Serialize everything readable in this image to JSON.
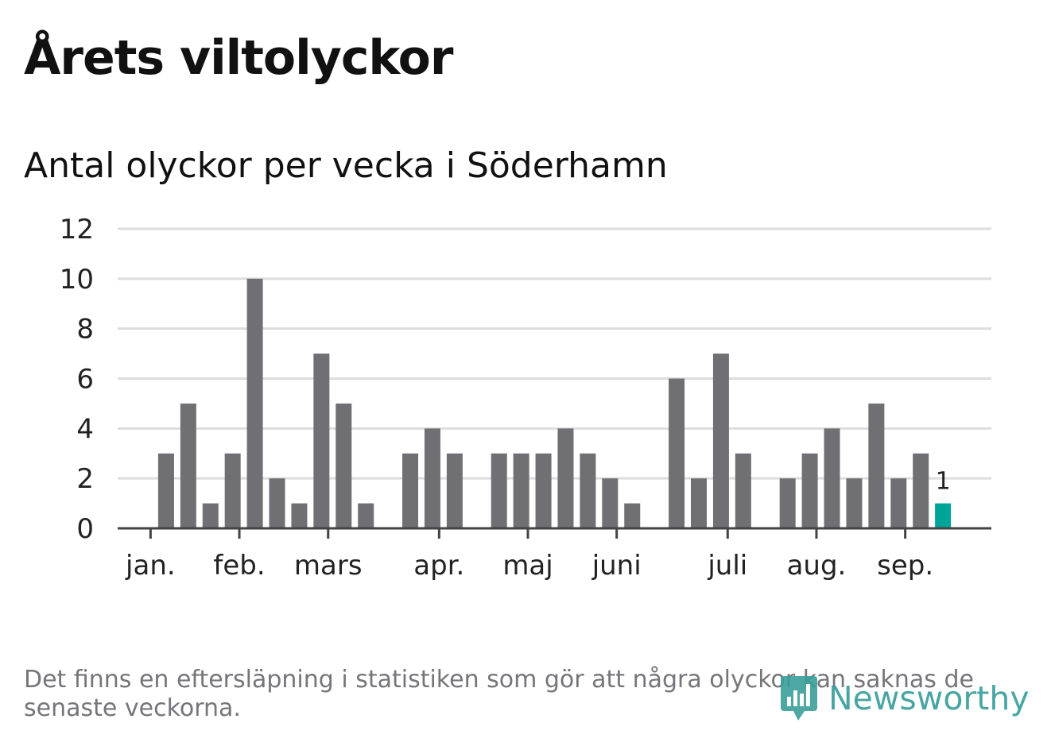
{
  "header": {
    "title": "Årets viltolyckor",
    "subtitle": "Antal olyckor per vecka i Söderhamn"
  },
  "footer": {
    "note": "Det finns en eftersläpning i statistiken som gör att några olyckor kan saknas de senaste veckorna.",
    "brand": "Newsworthy"
  },
  "colors": {
    "bar": "#707074",
    "highlight": "#00a497",
    "grid": "#dddddd",
    "axis": "#444444",
    "text": "#222222"
  },
  "chart_data": {
    "type": "bar",
    "values": [
      0,
      3,
      5,
      1,
      3,
      10,
      2,
      1,
      7,
      5,
      1,
      0,
      3,
      4,
      3,
      0,
      3,
      3,
      3,
      4,
      3,
      2,
      1,
      0,
      6,
      2,
      7,
      3,
      0,
      2,
      3,
      4,
      2,
      5,
      2,
      3,
      1
    ],
    "highlight_last": true,
    "last_label": "1",
    "y_ticks": [
      "0",
      "2",
      "4",
      "6",
      "8",
      "10",
      "12"
    ],
    "ylim": [
      0,
      12
    ],
    "months": [
      {
        "label": "jan.",
        "index": 0.3
      },
      {
        "label": "feb.",
        "index": 4.3
      },
      {
        "label": "mars",
        "index": 8.3
      },
      {
        "label": "apr.",
        "index": 13.3
      },
      {
        "label": "maj",
        "index": 17.3
      },
      {
        "label": "juni",
        "index": 21.3
      },
      {
        "label": "juli",
        "index": 26.3
      },
      {
        "label": "aug.",
        "index": 30.3
      },
      {
        "label": "sep.",
        "index": 34.3
      }
    ],
    "grid": true
  }
}
